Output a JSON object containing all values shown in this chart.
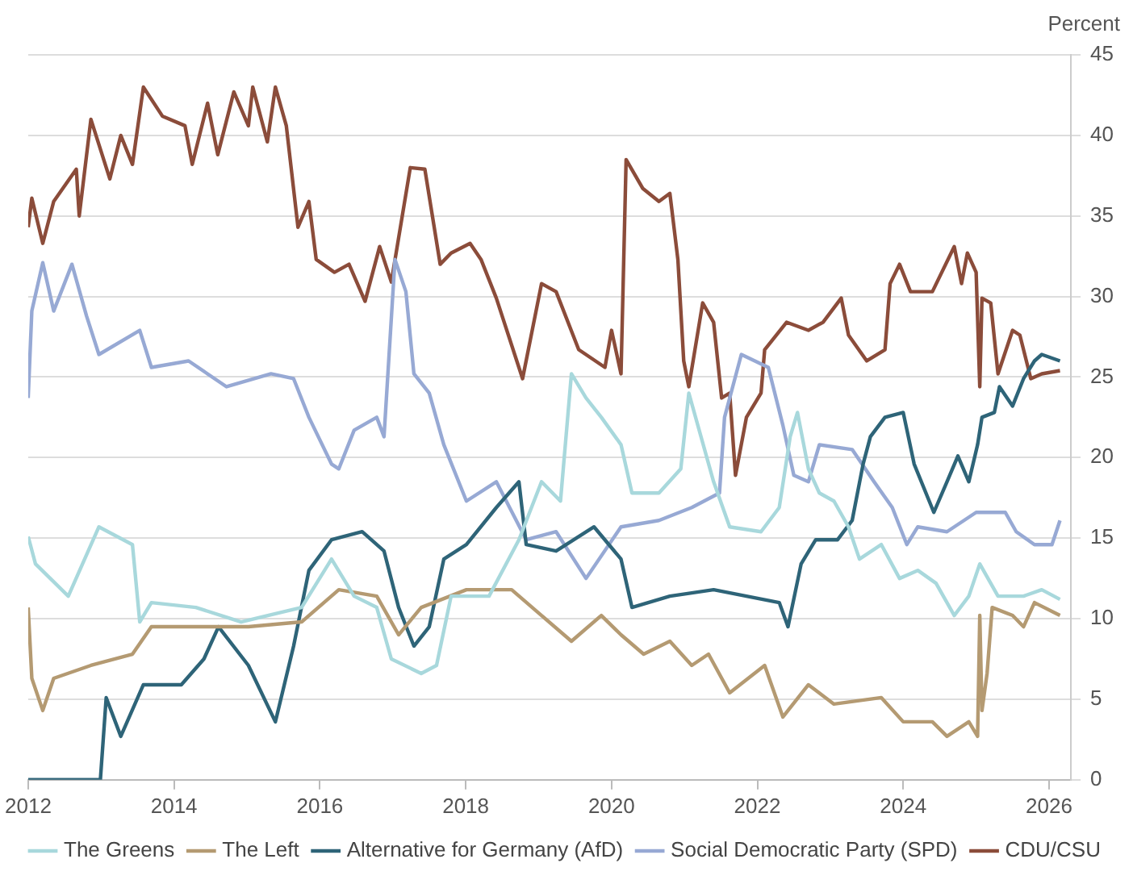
{
  "chart_data": {
    "type": "line",
    "ylabel": "Percent",
    "xlim": [
      2012,
      2026.3
    ],
    "xticks": [
      2012,
      2014,
      2016,
      2018,
      2020,
      2022,
      2024,
      2026
    ],
    "ylim": [
      0,
      45
    ],
    "yticks": [
      0,
      5,
      10,
      15,
      20,
      25,
      30,
      35,
      40,
      45
    ],
    "grid": "y",
    "legend": "bottom",
    "marker": "none",
    "line_style": "solid",
    "series": [
      {
        "name": "The Greens",
        "color": "#a8d8dc",
        "x": [
          2012.0,
          2012.1,
          2012.55,
          2012.97,
          2013.43,
          2013.53,
          2013.69,
          2014.3,
          2014.92,
          2015.75,
          2016.16,
          2016.47,
          2016.78,
          2016.98,
          2017.39,
          2017.6,
          2017.8,
          2018.32,
          2018.73,
          2019.04,
          2019.3,
          2019.45,
          2019.65,
          2019.86,
          2020.13,
          2020.28,
          2020.65,
          2020.95,
          2021.06,
          2021.4,
          2021.62,
          2022.05,
          2022.3,
          2022.45,
          2022.55,
          2022.7,
          2022.85,
          2023.05,
          2023.25,
          2023.4,
          2023.7,
          2023.95,
          2024.2,
          2024.45,
          2024.7,
          2024.9,
          2025.05,
          2025.2,
          2025.3,
          2025.65,
          2025.9,
          2026.15
        ],
        "values": [
          15.1,
          13.4,
          11.4,
          15.7,
          14.6,
          9.8,
          11,
          10.7,
          9.8,
          10.7,
          13.7,
          11.4,
          10.7,
          7.5,
          6.6,
          7.1,
          11.4,
          11.4,
          14.9,
          18.5,
          17.3,
          25.2,
          23.7,
          22.5,
          20.8,
          17.8,
          17.8,
          19.3,
          24,
          18.5,
          15.7,
          15.4,
          16.9,
          21.3,
          22.8,
          19.3,
          17.8,
          17.3,
          15.7,
          13.7,
          14.6,
          12.5,
          13,
          12.2,
          10.2,
          11.4,
          13.4,
          12.2,
          11.4,
          11.4,
          11.8,
          11.2
        ]
      },
      {
        "name": "The Left",
        "color": "#b49a72",
        "x": [
          2012.0,
          2012.05,
          2012.2,
          2012.35,
          2012.86,
          2013.43,
          2013.69,
          2014.3,
          2015.02,
          2015.75,
          2016.26,
          2016.78,
          2017.08,
          2017.39,
          2018.01,
          2018.63,
          2019.04,
          2019.45,
          2019.86,
          2020.13,
          2020.44,
          2020.8,
          2021.1,
          2021.33,
          2021.62,
          2022.1,
          2022.35,
          2022.7,
          2023.05,
          2023.7,
          2024.0,
          2024.4,
          2024.6,
          2024.9,
          2025.02,
          2025.05,
          2025.08,
          2025.15,
          2025.22,
          2025.5,
          2025.65,
          2025.8,
          2026.15
        ],
        "values": [
          10.7,
          6.3,
          4.3,
          6.3,
          7.1,
          7.8,
          9.5,
          9.5,
          9.5,
          9.8,
          11.8,
          11.4,
          9,
          10.7,
          11.8,
          11.8,
          10.2,
          8.6,
          10.2,
          9,
          7.8,
          8.6,
          7.1,
          7.8,
          5.4,
          7.1,
          3.9,
          5.9,
          4.7,
          5.1,
          3.6,
          3.6,
          2.7,
          3.6,
          2.7,
          10.2,
          4.3,
          6.6,
          10.7,
          10.2,
          9.5,
          11,
          10.2
        ]
      },
      {
        "name": "Alternative for Germany (AfD)",
        "color": "#2e6478",
        "x": [
          2012.0,
          2012.99,
          2013.07,
          2013.27,
          2013.58,
          2014.1,
          2014.41,
          2014.61,
          2015.02,
          2015.39,
          2015.64,
          2015.85,
          2016.16,
          2016.58,
          2016.88,
          2017.08,
          2017.29,
          2017.5,
          2017.7,
          2018.01,
          2018.42,
          2018.73,
          2018.83,
          2019.24,
          2019.76,
          2020.13,
          2020.28,
          2020.8,
          2021.4,
          2021.85,
          2022.3,
          2022.42,
          2022.6,
          2022.8,
          2023.1,
          2023.3,
          2023.45,
          2023.55,
          2023.75,
          2024.0,
          2024.15,
          2024.42,
          2024.6,
          2024.75,
          2024.9,
          2025.02,
          2025.08,
          2025.25,
          2025.32,
          2025.5,
          2025.65,
          2025.8,
          2025.9,
          2026.15
        ],
        "values": [
          0,
          0,
          5.1,
          2.7,
          5.9,
          5.9,
          7.5,
          9.5,
          7.1,
          3.6,
          8.3,
          13,
          14.9,
          15.4,
          14.2,
          10.7,
          8.3,
          9.5,
          13.7,
          14.6,
          16.9,
          18.5,
          14.6,
          14.2,
          15.7,
          13.7,
          10.7,
          11.4,
          11.8,
          11.4,
          11,
          9.5,
          13.4,
          14.9,
          14.9,
          16.1,
          19.6,
          21.3,
          22.5,
          22.8,
          19.6,
          16.6,
          18.5,
          20.1,
          18.5,
          20.8,
          22.5,
          22.8,
          24.4,
          23.2,
          24.9,
          26,
          26.4,
          26
        ]
      },
      {
        "name": "Social Democratic Party (SPD)",
        "color": "#97a9d4",
        "x": [
          2012.0,
          2012.05,
          2012.2,
          2012.35,
          2012.6,
          2012.8,
          2012.97,
          2013.53,
          2013.69,
          2014.2,
          2014.72,
          2015.33,
          2015.64,
          2015.85,
          2016.16,
          2016.26,
          2016.47,
          2016.78,
          2016.88,
          2017.03,
          2017.18,
          2017.29,
          2017.5,
          2017.7,
          2018.01,
          2018.42,
          2018.83,
          2019.24,
          2019.65,
          2020.13,
          2020.65,
          2021.1,
          2021.48,
          2021.55,
          2021.78,
          2022.15,
          2022.35,
          2022.5,
          2022.7,
          2022.85,
          2023.3,
          2023.6,
          2023.85,
          2024.05,
          2024.2,
          2024.6,
          2025.0,
          2025.4,
          2025.55,
          2025.8,
          2026.04,
          2026.15
        ],
        "values": [
          23.7,
          29.1,
          32.1,
          29.1,
          32,
          28.8,
          26.4,
          27.9,
          25.6,
          26,
          24.4,
          25.2,
          24.9,
          22.5,
          19.6,
          19.3,
          21.7,
          22.5,
          21.3,
          32.3,
          30.3,
          25.2,
          24,
          20.8,
          17.3,
          18.5,
          14.9,
          15.4,
          12.5,
          15.7,
          16.1,
          16.9,
          17.8,
          22.5,
          26.4,
          25.6,
          22,
          18.9,
          18.5,
          20.8,
          20.5,
          18.5,
          16.9,
          14.6,
          15.7,
          15.4,
          16.6,
          16.6,
          15.4,
          14.6,
          14.6,
          16.1
        ]
      },
      {
        "name": "CDU/CSU",
        "color": "#8b4c3a",
        "x": [
          2012.0,
          2012.05,
          2012.2,
          2012.35,
          2012.66,
          2012.7,
          2012.86,
          2013.12,
          2013.27,
          2013.43,
          2013.58,
          2013.84,
          2014.15,
          2014.25,
          2014.46,
          2014.6,
          2014.82,
          2015.02,
          2015.08,
          2015.28,
          2015.39,
          2015.54,
          2015.7,
          2015.85,
          2015.95,
          2016.2,
          2016.4,
          2016.62,
          2016.82,
          2016.98,
          2017.24,
          2017.44,
          2017.65,
          2017.8,
          2018.06,
          2018.21,
          2018.42,
          2018.78,
          2019.04,
          2019.24,
          2019.55,
          2019.91,
          2020.0,
          2020.13,
          2020.2,
          2020.43,
          2020.65,
          2020.8,
          2020.91,
          2020.99,
          2021.06,
          2021.25,
          2021.4,
          2021.51,
          2021.62,
          2021.7,
          2021.85,
          2022.05,
          2022.1,
          2022.4,
          2022.7,
          2022.9,
          2023.15,
          2023.25,
          2023.5,
          2023.75,
          2023.82,
          2023.95,
          2024.1,
          2024.4,
          2024.7,
          2024.8,
          2024.88,
          2025.0,
          2025.05,
          2025.08,
          2025.2,
          2025.3,
          2025.5,
          2025.6,
          2025.75,
          2025.9,
          2026.15
        ],
        "values": [
          34.3,
          36.1,
          33.3,
          35.9,
          37.9,
          35,
          41,
          37.3,
          40,
          38.2,
          43,
          41.2,
          40.6,
          38.2,
          42,
          38.8,
          42.7,
          40.6,
          43,
          39.6,
          43,
          40.6,
          34.3,
          35.9,
          32.3,
          31.5,
          32,
          29.7,
          33.1,
          30.9,
          38,
          37.9,
          32,
          32.7,
          33.3,
          32.3,
          29.9,
          24.9,
          30.8,
          30.3,
          26.7,
          25.6,
          27.9,
          25.2,
          38.5,
          36.7,
          35.9,
          36.4,
          32.3,
          26,
          24.4,
          29.6,
          28.4,
          23.7,
          24,
          18.9,
          22.5,
          24,
          26.7,
          28.4,
          27.9,
          28.4,
          29.9,
          27.6,
          26,
          26.7,
          30.8,
          32,
          30.3,
          30.3,
          33.1,
          30.8,
          32.7,
          31.5,
          24.4,
          29.9,
          29.6,
          25.2,
          27.9,
          27.6,
          24.9,
          25.2,
          25.4
        ]
      }
    ]
  }
}
